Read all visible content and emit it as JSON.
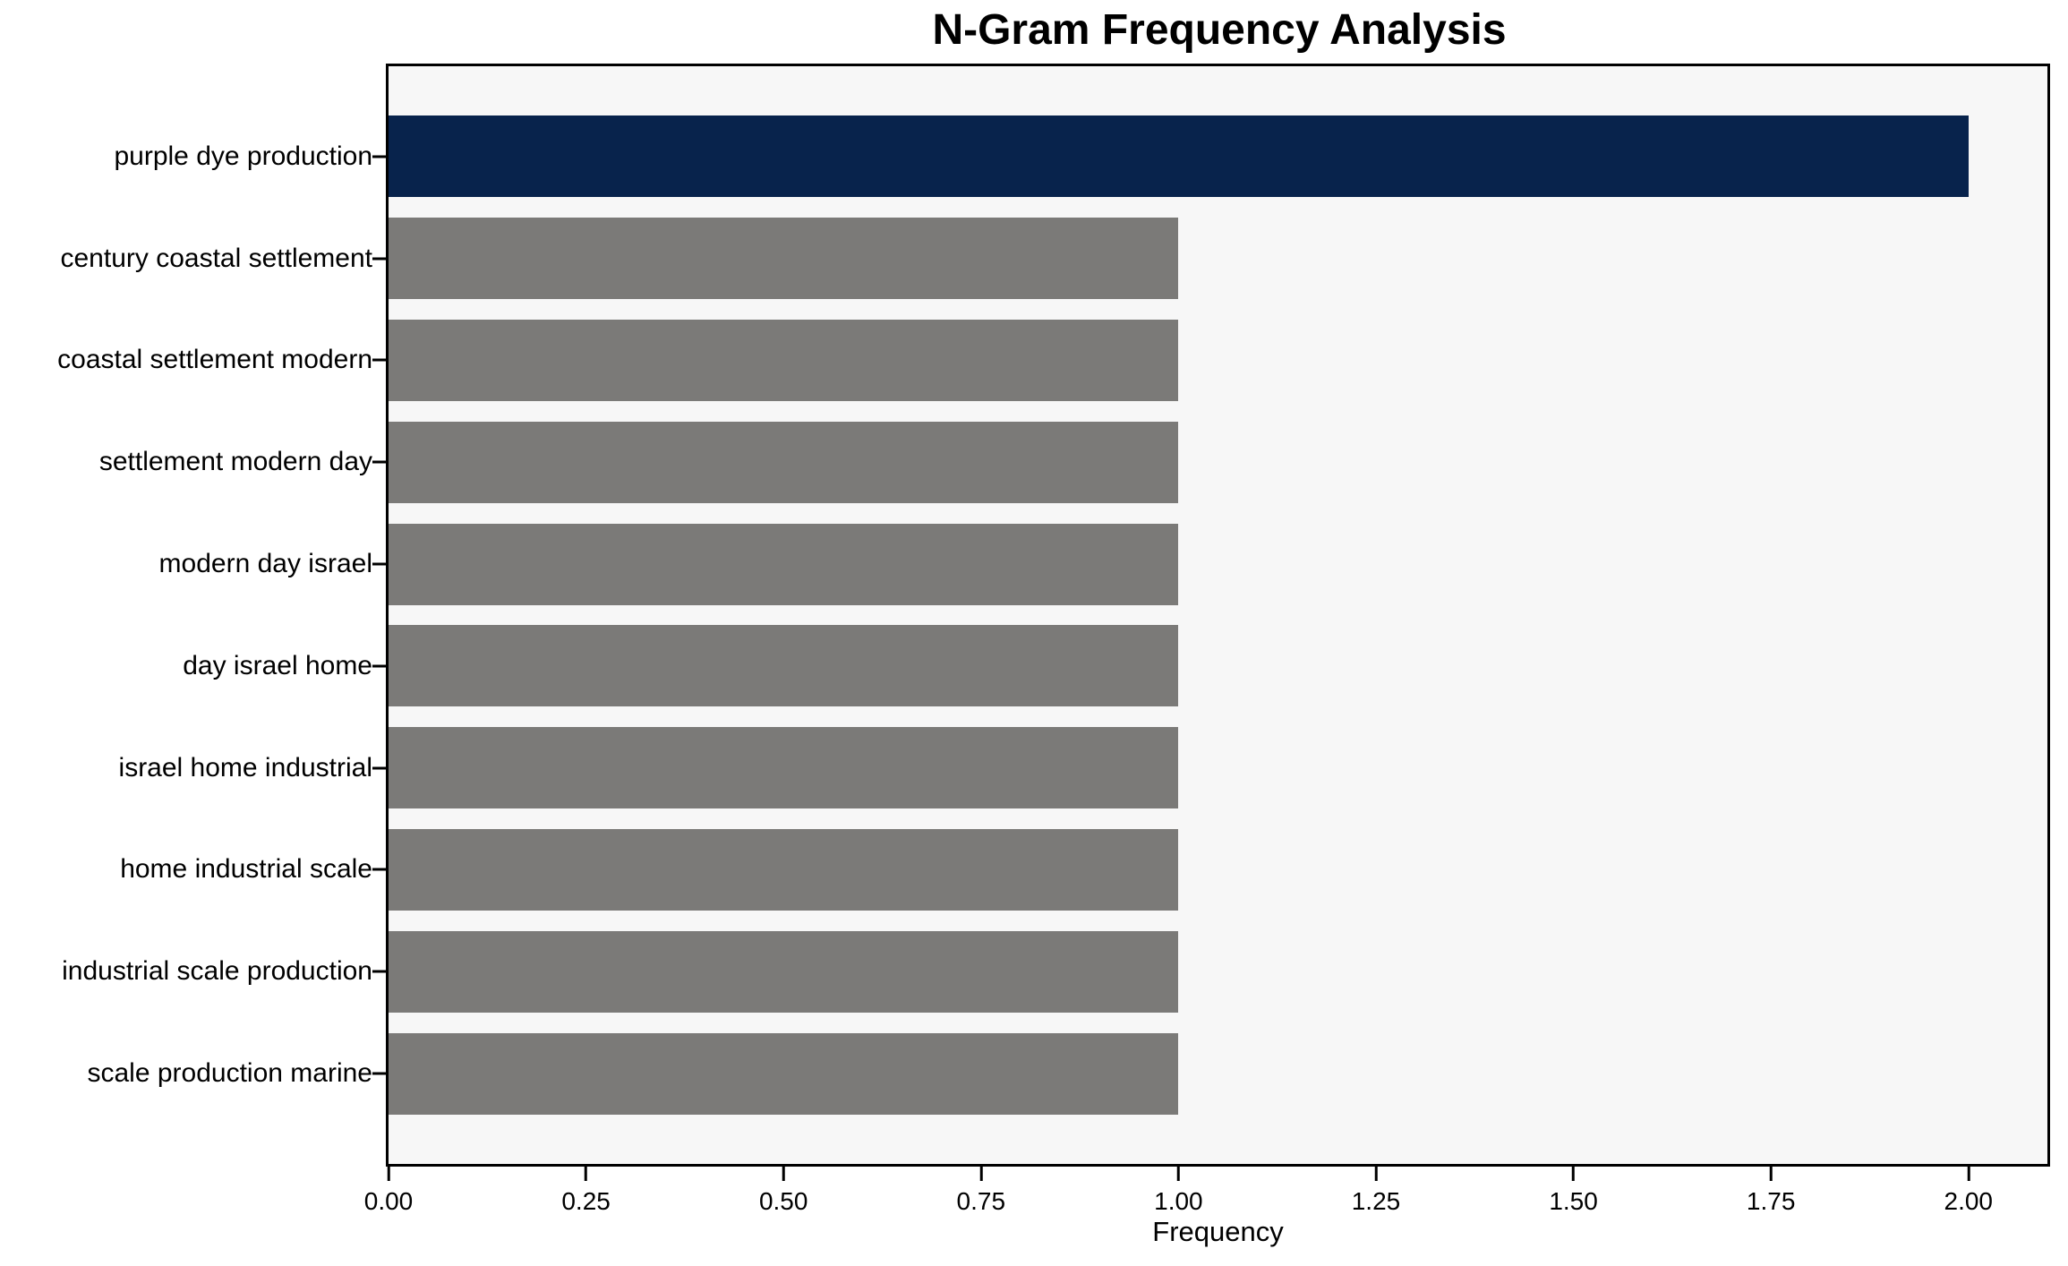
{
  "chart_data": {
    "type": "bar",
    "orientation": "horizontal",
    "title": "N-Gram Frequency Analysis",
    "xlabel": "Frequency",
    "ylabel": "",
    "categories": [
      "purple dye production",
      "century coastal settlement",
      "coastal settlement modern",
      "settlement modern day",
      "modern day israel",
      "day israel home",
      "israel home industrial",
      "home industrial scale",
      "industrial scale production",
      "scale production marine"
    ],
    "values": [
      2,
      1,
      1,
      1,
      1,
      1,
      1,
      1,
      1,
      1
    ],
    "bar_colors": [
      "#08234c",
      "#7b7a78",
      "#7b7a78",
      "#7b7a78",
      "#7b7a78",
      "#7b7a78",
      "#7b7a78",
      "#7b7a78",
      "#7b7a78",
      "#7b7a78"
    ],
    "xlim": [
      0,
      2.1
    ],
    "xticks": [
      {
        "value": 0.0,
        "label": "0.00"
      },
      {
        "value": 0.25,
        "label": "0.25"
      },
      {
        "value": 0.5,
        "label": "0.50"
      },
      {
        "value": 0.75,
        "label": "0.75"
      },
      {
        "value": 1.0,
        "label": "1.00"
      },
      {
        "value": 1.25,
        "label": "1.25"
      },
      {
        "value": 1.5,
        "label": "1.50"
      },
      {
        "value": 1.75,
        "label": "1.75"
      },
      {
        "value": 2.0,
        "label": "2.00"
      }
    ],
    "grid": false,
    "legend": null,
    "colors": {
      "highlight": "#08234c",
      "default": "#7b7a78",
      "plot_background": "#f7f7f7",
      "figure_background": "#ffffff",
      "spine": "#000000",
      "text": "#000000"
    }
  }
}
